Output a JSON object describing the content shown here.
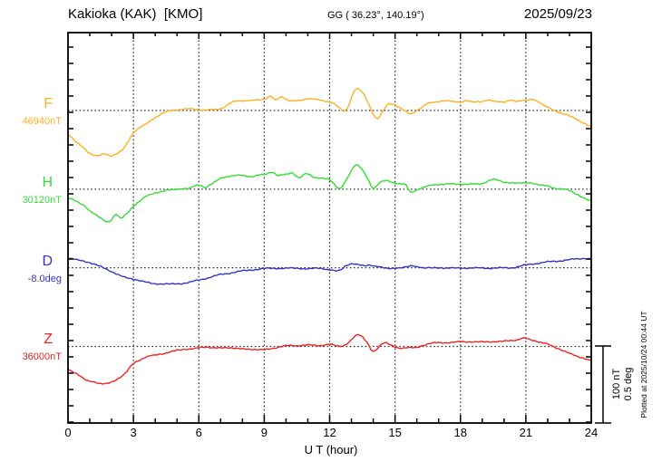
{
  "header": {
    "station": "Kakioka (KAK)  [KMO]",
    "coords": "GG ( 36.23°, 140.19°)",
    "date": "2025/09/23"
  },
  "axes": {
    "x_label": "U T (hour)",
    "x_ticks": [
      0,
      3,
      6,
      9,
      12,
      15,
      18,
      21,
      24
    ],
    "x_range": [
      0,
      24
    ],
    "x_minor_step_hours": 1,
    "x_major_step_hours": 3
  },
  "scale_bar": {
    "label_nt": "100 nT",
    "label_deg": "0.5 deg",
    "bar_value_nT": 100,
    "bar_value_deg": 0.5
  },
  "footer_note": "Plotted at 2025/10/24 00:44 UT",
  "chart_data": {
    "type": "line",
    "title": "Kakioka (KAK) [KMO] magnetogram for 2025/09/23",
    "xlabel": "U T (hour)",
    "xlim": [
      0,
      24
    ],
    "grid": "dotted vertical every 3 h; dotted horizontal baseline per component",
    "legend_position": "left margin (component name + baseline value)",
    "amplitude_scale": {
      "nT_per_division": 100,
      "deg_per_division": 0.5
    },
    "series": [
      {
        "name": "F",
        "unit": "nT",
        "baseline_label": "46940nT",
        "baseline_value": 46940,
        "color": "#ffb020",
        "offset_unit": "nT from baseline",
        "points": [
          [
            0,
            -31
          ],
          [
            0.3,
            -39
          ],
          [
            0.7,
            -48
          ],
          [
            1,
            -56
          ],
          [
            1.3,
            -59
          ],
          [
            1.7,
            -56
          ],
          [
            2,
            -59
          ],
          [
            2.5,
            -51
          ],
          [
            3,
            -29
          ],
          [
            3.5,
            -19
          ],
          [
            4,
            -9
          ],
          [
            4.5,
            -2
          ],
          [
            5,
            1
          ],
          [
            5.5,
            2
          ],
          [
            6,
            1
          ],
          [
            6.5,
            1
          ],
          [
            7,
            2
          ],
          [
            7.5,
            11
          ],
          [
            8,
            12
          ],
          [
            8.5,
            14
          ],
          [
            9,
            14
          ],
          [
            9.3,
            19
          ],
          [
            9.5,
            14
          ],
          [
            9.8,
            18
          ],
          [
            10,
            14
          ],
          [
            10.5,
            13
          ],
          [
            11,
            15
          ],
          [
            11.5,
            14
          ],
          [
            12,
            11
          ],
          [
            12.3,
            7
          ],
          [
            12.6,
            0
          ],
          [
            12.8,
            2
          ],
          [
            13,
            16
          ],
          [
            13.2,
            28
          ],
          [
            13.5,
            24
          ],
          [
            13.8,
            8
          ],
          [
            14,
            -5
          ],
          [
            14.2,
            -11
          ],
          [
            14.5,
            2
          ],
          [
            14.7,
            9
          ],
          [
            15,
            7
          ],
          [
            15.3,
            2
          ],
          [
            15.5,
            -1
          ],
          [
            15.7,
            -4
          ],
          [
            16,
            0
          ],
          [
            16.3,
            5
          ],
          [
            16.5,
            9
          ],
          [
            17,
            12
          ],
          [
            17.5,
            12
          ],
          [
            18,
            11
          ],
          [
            18.3,
            13
          ],
          [
            18.5,
            11
          ],
          [
            19,
            12
          ],
          [
            19.3,
            14
          ],
          [
            19.5,
            12
          ],
          [
            20,
            11
          ],
          [
            20.3,
            14
          ],
          [
            20.5,
            12
          ],
          [
            21,
            13
          ],
          [
            21.3,
            15
          ],
          [
            21.5,
            12
          ],
          [
            22,
            4
          ],
          [
            22.5,
            -2
          ],
          [
            23,
            -7
          ],
          [
            23.5,
            -14
          ],
          [
            24,
            -21
          ]
        ]
      },
      {
        "name": "H",
        "unit": "nT",
        "baseline_label": "30120nT",
        "baseline_value": 30120,
        "color": "#33dd33",
        "offset_unit": "nT from baseline",
        "points": [
          [
            0,
            -11
          ],
          [
            0.3,
            -15
          ],
          [
            0.5,
            -18
          ],
          [
            0.8,
            -22
          ],
          [
            1,
            -28
          ],
          [
            1.3,
            -34
          ],
          [
            1.6,
            -40
          ],
          [
            1.9,
            -42
          ],
          [
            2.2,
            -32
          ],
          [
            2.4,
            -38
          ],
          [
            2.7,
            -32
          ],
          [
            3,
            -22
          ],
          [
            3.3,
            -15
          ],
          [
            3.6,
            -9
          ],
          [
            4,
            -5
          ],
          [
            4.4,
            -2
          ],
          [
            4.7,
            -1
          ],
          [
            5,
            0
          ],
          [
            5.5,
            1
          ],
          [
            6,
            5
          ],
          [
            6.3,
            2
          ],
          [
            6.6,
            7
          ],
          [
            7,
            14
          ],
          [
            7.3,
            16
          ],
          [
            7.7,
            18
          ],
          [
            8,
            18
          ],
          [
            8.4,
            16
          ],
          [
            8.7,
            18
          ],
          [
            9,
            19
          ],
          [
            9.4,
            22
          ],
          [
            9.6,
            18
          ],
          [
            10,
            19
          ],
          [
            10.3,
            21
          ],
          [
            10.6,
            15
          ],
          [
            10.9,
            20
          ],
          [
            11.3,
            15
          ],
          [
            11.6,
            15
          ],
          [
            12,
            12
          ],
          [
            12.4,
            1
          ],
          [
            12.6,
            5
          ],
          [
            13,
            24
          ],
          [
            13.2,
            31
          ],
          [
            13.5,
            25
          ],
          [
            13.8,
            11
          ],
          [
            14,
            1
          ],
          [
            14.3,
            8
          ],
          [
            14.6,
            11
          ],
          [
            14.9,
            9
          ],
          [
            15.2,
            7
          ],
          [
            15.5,
            5
          ],
          [
            15.7,
            -4
          ],
          [
            16,
            -1
          ],
          [
            16.5,
            4
          ],
          [
            17,
            6
          ],
          [
            17.5,
            7
          ],
          [
            18,
            6
          ],
          [
            18.5,
            7
          ],
          [
            19,
            7
          ],
          [
            19.5,
            13
          ],
          [
            20,
            9
          ],
          [
            20.5,
            8
          ],
          [
            21,
            8
          ],
          [
            21.4,
            7
          ],
          [
            21.7,
            5
          ],
          [
            22,
            4
          ],
          [
            22.4,
            1
          ],
          [
            22.9,
            -1
          ],
          [
            23.3,
            -6
          ],
          [
            23.7,
            -12
          ],
          [
            24,
            -15
          ]
        ]
      },
      {
        "name": "D",
        "unit": "deg",
        "baseline_label": "-8.0deg",
        "baseline_value": -8.0,
        "color": "#3333cc",
        "offset_unit": "deg from baseline",
        "points": [
          [
            0,
            0.062
          ],
          [
            0.5,
            0.05
          ],
          [
            1,
            0.032
          ],
          [
            1.5,
            0.009
          ],
          [
            2,
            -0.026
          ],
          [
            2.5,
            -0.056
          ],
          [
            3,
            -0.074
          ],
          [
            3.5,
            -0.091
          ],
          [
            4,
            -0.103
          ],
          [
            4.5,
            -0.106
          ],
          [
            5,
            -0.103
          ],
          [
            5.5,
            -0.097
          ],
          [
            6,
            -0.079
          ],
          [
            6.5,
            -0.062
          ],
          [
            7,
            -0.044
          ],
          [
            7.5,
            -0.032
          ],
          [
            8,
            -0.021
          ],
          [
            8.5,
            -0.012
          ],
          [
            9,
            -0.006
          ],
          [
            9.5,
            -0.003
          ],
          [
            10,
            -0.003
          ],
          [
            10.5,
            -0.003
          ],
          [
            11,
            -0.006
          ],
          [
            11.5,
            -0.003
          ],
          [
            12,
            -0.012
          ],
          [
            12.3,
            -0.021
          ],
          [
            12.5,
            -0.015
          ],
          [
            12.7,
            0.009
          ],
          [
            13,
            0.026
          ],
          [
            13.3,
            0.021
          ],
          [
            13.6,
            0.012
          ],
          [
            13.8,
            0.018
          ],
          [
            14.1,
            0.009
          ],
          [
            14.5,
            0
          ],
          [
            15,
            -0.003
          ],
          [
            15.5,
            0.006
          ],
          [
            15.9,
            0.012
          ],
          [
            16.2,
            0
          ],
          [
            17,
            0
          ],
          [
            17.5,
            -0.003
          ],
          [
            18,
            0
          ],
          [
            18.5,
            -0.003
          ],
          [
            19,
            0
          ],
          [
            19.5,
            -0.003
          ],
          [
            20,
            0
          ],
          [
            20.5,
            0.003
          ],
          [
            21,
            0.018
          ],
          [
            21.5,
            0.029
          ],
          [
            22,
            0.038
          ],
          [
            22.5,
            0.044
          ],
          [
            23,
            0.053
          ],
          [
            23.5,
            0.059
          ],
          [
            23.8,
            0.062
          ],
          [
            24,
            0.053
          ]
        ]
      },
      {
        "name": "Z",
        "unit": "nT",
        "baseline_label": "36000nT",
        "baseline_value": 36000,
        "color": "#ee2222",
        "offset_unit": "nT from baseline",
        "points": [
          [
            0,
            -30
          ],
          [
            0.4,
            -36
          ],
          [
            0.8,
            -43
          ],
          [
            1.2,
            -46
          ],
          [
            1.5,
            -49
          ],
          [
            1.8,
            -48
          ],
          [
            2.2,
            -43
          ],
          [
            2.6,
            -36
          ],
          [
            3,
            -22
          ],
          [
            3.4,
            -16
          ],
          [
            3.8,
            -12
          ],
          [
            4.4,
            -9
          ],
          [
            5,
            -5
          ],
          [
            5.7,
            -3
          ],
          [
            6.4,
            -1
          ],
          [
            7,
            -2
          ],
          [
            7.5,
            -2
          ],
          [
            8,
            -3
          ],
          [
            8.5,
            -4
          ],
          [
            9,
            -4
          ],
          [
            9.5,
            -2
          ],
          [
            10,
            1
          ],
          [
            10.5,
            1
          ],
          [
            11,
            2
          ],
          [
            11.5,
            1
          ],
          [
            12,
            3
          ],
          [
            12.5,
            0
          ],
          [
            12.8,
            4
          ],
          [
            13.3,
            15
          ],
          [
            13.7,
            6
          ],
          [
            14,
            -6
          ],
          [
            14.4,
            3
          ],
          [
            14.6,
            4
          ],
          [
            14.9,
            1
          ],
          [
            15.2,
            -2
          ],
          [
            15.6,
            -2
          ],
          [
            16,
            -1
          ],
          [
            16.5,
            3
          ],
          [
            17,
            5
          ],
          [
            17.5,
            5
          ],
          [
            18,
            6
          ],
          [
            18.5,
            6
          ],
          [
            19,
            6
          ],
          [
            19.5,
            6
          ],
          [
            20,
            7
          ],
          [
            20.5,
            8
          ],
          [
            20.9,
            11
          ],
          [
            21.3,
            8
          ],
          [
            21.7,
            5
          ],
          [
            22,
            3
          ],
          [
            22.5,
            -3
          ],
          [
            23,
            -9
          ],
          [
            23.5,
            -14
          ],
          [
            24,
            -18
          ]
        ]
      }
    ]
  }
}
